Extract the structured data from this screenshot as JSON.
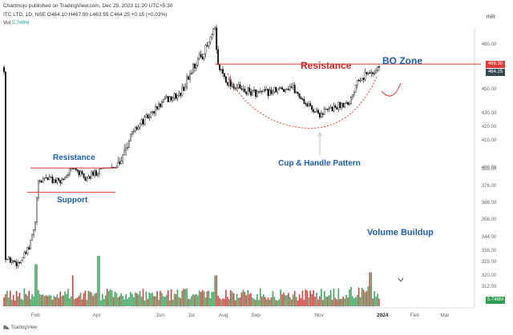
{
  "header": {
    "published_line": "Chartmojo published on TradingView.com, Dec 29, 2023 11:20 UTC+5:30",
    "symbol_line": "ITC LTD, 1D, NSE",
    "ohlc": {
      "open": "O464.10",
      "high": "H467.90",
      "low": "L463.55",
      "close": "C464.25",
      "change": "+0.15 (+0.03%)"
    },
    "volume_label": "Vol",
    "volume_value": "5.748M",
    "currency": "INR"
  },
  "brand": "TradingView",
  "annotations": {
    "resistance_top": "Resistance",
    "bo_zone": "BO Zone",
    "cup_handle": "Cup & Handle Pattern",
    "resistance_left": "Resistance",
    "support_left": "Support",
    "volume_buildup": "Volume Buildup"
  },
  "colors": {
    "up": "#26a69a",
    "down": "#ef5350",
    "volume_up": "#2e9e4f",
    "volume_down": "#d32f2f",
    "resistance_line": "#e53935",
    "price_label_bg": "#37474f",
    "resistance_label_bg": "#e53935",
    "annotation_blue": "#1e5fae",
    "annotation_red": "#c62828",
    "candle": "#111111"
  },
  "chart_data": {
    "type": "candlestick",
    "title": "ITC LTD, 1D, NSE",
    "x_ticks": [
      "Feb",
      "Apr",
      "Jun",
      "Jul",
      "Aug",
      "Sep",
      "Nov",
      "2024",
      "Feb",
      "Mar"
    ],
    "y_ticks": [
      312,
      320,
      328,
      336,
      344,
      356,
      366,
      376,
      388,
      400,
      410,
      420,
      430,
      450,
      480
    ],
    "y_scale": "log",
    "last_price": 464.25,
    "resistance_level": 466.3,
    "price_labels": [
      "466.30",
      "464.25"
    ],
    "volume_last_label": "5.748M",
    "left_range": {
      "resistance": 393,
      "support": 372
    },
    "close_path": [
      {
        "date": "2023-01-02",
        "close": 330
      },
      {
        "date": "2023-01-16",
        "close": 327
      },
      {
        "date": "2023-01-26",
        "close": 337
      },
      {
        "date": "2023-02-01",
        "close": 353
      },
      {
        "date": "2023-02-03",
        "close": 376
      },
      {
        "date": "2023-02-10",
        "close": 382
      },
      {
        "date": "2023-02-24",
        "close": 378
      },
      {
        "date": "2023-03-10",
        "close": 390
      },
      {
        "date": "2023-03-20",
        "close": 380
      },
      {
        "date": "2023-03-31",
        "close": 385
      },
      {
        "date": "2023-04-10",
        "close": 395
      },
      {
        "date": "2023-04-25",
        "close": 404
      },
      {
        "date": "2023-05-10",
        "close": 420
      },
      {
        "date": "2023-05-22",
        "close": 428
      },
      {
        "date": "2023-06-05",
        "close": 440
      },
      {
        "date": "2023-06-20",
        "close": 445
      },
      {
        "date": "2023-07-03",
        "close": 465
      },
      {
        "date": "2023-07-14",
        "close": 475
      },
      {
        "date": "2023-07-24",
        "close": 490
      },
      {
        "date": "2023-07-26",
        "close": 466
      },
      {
        "date": "2023-08-05",
        "close": 455
      },
      {
        "date": "2023-08-20",
        "close": 448
      },
      {
        "date": "2023-09-05",
        "close": 446
      },
      {
        "date": "2023-09-20",
        "close": 448
      },
      {
        "date": "2023-10-05",
        "close": 452
      },
      {
        "date": "2023-10-20",
        "close": 437
      },
      {
        "date": "2023-11-01",
        "close": 429
      },
      {
        "date": "2023-11-20",
        "close": 436
      },
      {
        "date": "2023-12-01",
        "close": 440
      },
      {
        "date": "2023-12-08",
        "close": 458
      },
      {
        "date": "2023-12-20",
        "close": 460
      },
      {
        "date": "2023-12-29",
        "close": 464.25
      }
    ]
  }
}
